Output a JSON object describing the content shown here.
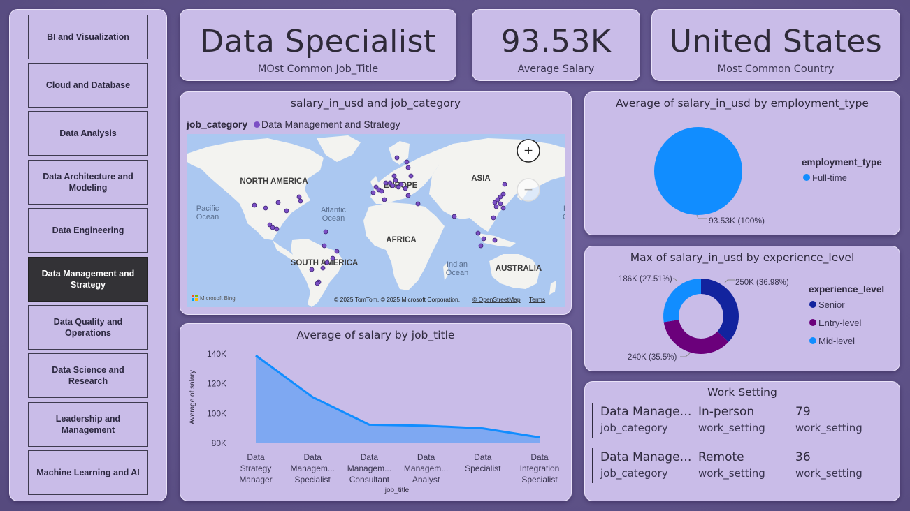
{
  "sidebar": {
    "items": [
      {
        "label": "BI and Visualization",
        "active": false
      },
      {
        "label": "Cloud and Database",
        "active": false
      },
      {
        "label": "Data Analysis",
        "active": false
      },
      {
        "label": "Data Architecture and Modeling",
        "active": false
      },
      {
        "label": "Data Engineering",
        "active": false
      },
      {
        "label": "Data Management and Strategy",
        "active": true
      },
      {
        "label": "Data Quality and Operations",
        "active": false
      },
      {
        "label": "Data Science and Research",
        "active": false
      },
      {
        "label": "Leadership and Management",
        "active": false
      },
      {
        "label": "Machine Learning and AI",
        "active": false
      }
    ]
  },
  "kpis": {
    "job_title": {
      "value": "Data Specialist",
      "label": "MOst Common Job_Title"
    },
    "salary": {
      "value": "93.53K",
      "label": "Average Salary"
    },
    "country": {
      "value": "United States",
      "label": "Most Common Country"
    }
  },
  "map": {
    "title": "salary_in_usd and job_category",
    "legend_title": "job_category",
    "legend_item": "Data Management and Strategy",
    "legend_color": "#7b4fc4",
    "labels": {
      "north_america": "NORTH AMERICA",
      "south_america": "SOUTH AMERICA",
      "europe": "EUROPE",
      "africa": "AFRICA",
      "asia": "ASIA",
      "australia": "AUSTRALIA",
      "pacific_1": "Pacific",
      "pacific_2": "Ocean",
      "atlantic_1": "Atlantic",
      "atlantic_2": "Ocean",
      "indian_1": "Indian",
      "indian_2": "Ocean",
      "right_edge_1": "P",
      "right_edge_2": "O"
    },
    "bing": "Microsoft Bing",
    "copyright": "© 2025 TomTom, © 2025 Microsoft Corporation,",
    "osm": "© OpenStreetMap",
    "terms": "Terms",
    "zoom_in": "+",
    "zoom_out": "−"
  },
  "pie": {
    "title": "Average of salary_in_usd by employment_type",
    "legend_title": "employment_type",
    "slices": [
      {
        "name": "Full-time",
        "value": 93.53,
        "color": "#118dff"
      }
    ],
    "data_label": "93.53K (100%)"
  },
  "donut": {
    "title": "Max of salary_in_usd by experience_level",
    "legend_title": "experience_level",
    "slices": [
      {
        "name": "Senior",
        "value": 250,
        "color": "#12239e"
      },
      {
        "name": "Entry-level",
        "value": 240,
        "color": "#6b007b"
      },
      {
        "name": "Mid-level",
        "value": 186,
        "color": "#118dff"
      }
    ],
    "labels": {
      "senior": "250K (36.98%)",
      "entry": "240K (35.5%)",
      "mid": "186K (27.51%)"
    }
  },
  "work_setting": {
    "title": "Work Setting",
    "rows": [
      {
        "category": "Data Manage…",
        "category_label": "job_category",
        "setting": "In-person",
        "setting_label": "work_setting",
        "count": "79",
        "count_label": "work_setting"
      },
      {
        "category": "Data Manage…",
        "category_label": "job_category",
        "setting": "Remote",
        "setting_label": "work_setting",
        "count": "36",
        "count_label": "work_setting"
      }
    ]
  },
  "chart_data": {
    "type": "area",
    "title": "Average of salary by job_title",
    "xlabel": "job_title",
    "ylabel": "Average of salary",
    "ylim": [
      80000,
      140000
    ],
    "yticks": [
      "140K",
      "120K",
      "100K",
      "80K"
    ],
    "ytick_values": [
      140000,
      120000,
      100000,
      80000
    ],
    "categories": [
      [
        "Data",
        "Strategy",
        "Manager"
      ],
      [
        "Data",
        "Managem...",
        "Specialist"
      ],
      [
        "Data",
        "Managem...",
        "Consultant"
      ],
      [
        "Data",
        "Managem...",
        "Analyst"
      ],
      [
        "Data",
        "Specialist"
      ],
      [
        "Data",
        "Integration",
        "Specialist"
      ]
    ],
    "values": [
      139000,
      111000,
      92500,
      91800,
      90000,
      84000
    ],
    "color": "#118dff"
  }
}
